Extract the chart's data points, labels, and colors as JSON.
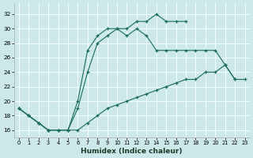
{
  "xlabel": "Humidex (Indice chaleur)",
  "xlim": [
    -0.5,
    23.5
  ],
  "ylim": [
    15.0,
    33.5
  ],
  "xticks": [
    0,
    1,
    2,
    3,
    4,
    5,
    6,
    7,
    8,
    9,
    10,
    11,
    12,
    13,
    14,
    15,
    16,
    17,
    18,
    19,
    20,
    21,
    22,
    23
  ],
  "yticks": [
    16,
    18,
    20,
    22,
    24,
    26,
    28,
    30,
    32
  ],
  "bg_color": "#cce8e8",
  "grid_color": "#f5ffff",
  "line_color": "#1a6b5a",
  "line1_x": [
    0,
    1,
    2,
    3,
    4,
    5,
    6,
    7,
    8,
    9,
    10,
    11,
    12,
    13,
    14,
    15,
    16,
    17
  ],
  "line1_y": [
    19,
    18,
    17,
    16,
    16,
    16,
    20,
    27,
    29,
    30,
    30,
    30,
    31,
    31,
    32,
    31,
    31,
    31
  ],
  "line2_x": [
    0,
    1,
    2,
    3,
    4,
    5,
    6,
    7,
    8,
    9,
    10,
    11,
    12,
    13,
    14,
    15,
    16,
    17,
    18,
    19,
    20,
    21,
    22
  ],
  "line2_y": [
    19,
    18,
    17,
    16,
    16,
    16,
    19,
    24,
    28,
    29,
    30,
    29,
    30,
    29,
    27,
    27,
    27,
    27,
    27,
    27,
    27,
    25,
    23
  ],
  "line3_x": [
    0,
    1,
    2,
    3,
    4,
    5,
    6,
    7,
    8,
    9,
    10,
    11,
    12,
    13,
    14,
    15,
    16,
    17,
    18,
    19,
    20,
    21,
    22,
    23
  ],
  "line3_y": [
    19,
    18,
    17,
    16,
    16,
    16,
    16,
    17,
    18,
    19,
    19.5,
    20,
    20.5,
    21,
    21.5,
    22,
    22.5,
    23,
    23,
    24,
    24,
    25,
    23,
    23
  ]
}
